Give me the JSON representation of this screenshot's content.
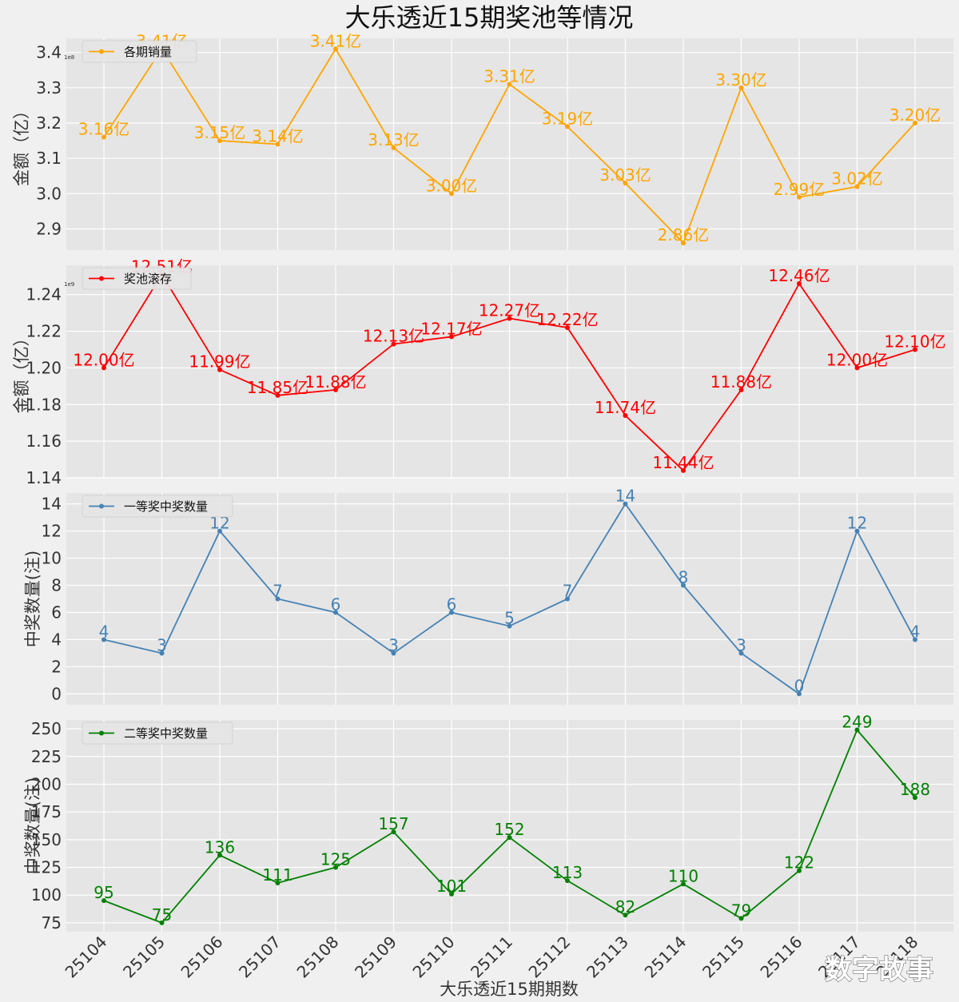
{
  "title": "大乐透近15期奖池等情况",
  "xlabel": "大乐透近15期期数",
  "watermark": "数字故事",
  "chart_data": [
    {
      "type": "line",
      "name": "sales",
      "legend": "各期销量",
      "color": "#FFA500",
      "ylabel": "金额（亿）",
      "exponent": "1e8",
      "categories": [
        "25104",
        "25105",
        "25106",
        "25107",
        "25108",
        "25109",
        "25110",
        "25111",
        "25112",
        "25113",
        "25114",
        "25115",
        "25116",
        "25117",
        "25118"
      ],
      "values": [
        3.16,
        3.41,
        3.15,
        3.14,
        3.41,
        3.13,
        3.0,
        3.31,
        3.19,
        3.03,
        2.86,
        3.3,
        2.99,
        3.02,
        3.2
      ],
      "labels": [
        "3.16亿",
        "3.41亿",
        "3.15亿",
        "3.14亿",
        "3.41亿",
        "3.13亿",
        "3.00亿",
        "3.31亿",
        "3.19亿",
        "3.03亿",
        "2.86亿",
        "3.30亿",
        "2.99亿",
        "3.02亿",
        "3.20亿"
      ],
      "ylim": [
        2.84,
        3.44
      ],
      "yticks": [
        2.9,
        3.0,
        3.1,
        3.2,
        3.3,
        3.4
      ],
      "yticklabels": [
        "2.9",
        "3.0",
        "3.1",
        "3.2",
        "3.3",
        "3.4"
      ]
    },
    {
      "type": "line",
      "name": "pool",
      "legend": "奖池滚存",
      "color": "#FF0000",
      "ylabel": "金额（亿）",
      "exponent": "1e9",
      "categories": [
        "25104",
        "25105",
        "25106",
        "25107",
        "25108",
        "25109",
        "25110",
        "25111",
        "25112",
        "25113",
        "25114",
        "25115",
        "25116",
        "25117",
        "25118"
      ],
      "values": [
        12.0,
        12.51,
        11.99,
        11.85,
        11.88,
        12.13,
        12.17,
        12.27,
        12.22,
        11.74,
        11.44,
        11.88,
        12.46,
        12.0,
        12.1
      ],
      "labels": [
        "12.00亿",
        "12.51亿",
        "11.99亿",
        "11.85亿",
        "11.88亿",
        "12.13亿",
        "12.17亿",
        "12.27亿",
        "12.22亿",
        "11.74亿",
        "11.44亿",
        "11.88亿",
        "12.46亿",
        "12.00亿",
        "12.10亿"
      ],
      "ylim": [
        11.4,
        12.56
      ],
      "yticks": [
        11.4,
        11.6,
        11.8,
        12.0,
        12.2,
        12.4
      ],
      "yticklabels": [
        "1.14",
        "1.16",
        "1.18",
        "1.20",
        "1.22",
        "1.24"
      ]
    },
    {
      "type": "line",
      "name": "first",
      "legend": "一等奖中奖数量",
      "color": "#4682B4",
      "ylabel": "中奖数量(注)",
      "categories": [
        "25104",
        "25105",
        "25106",
        "25107",
        "25108",
        "25109",
        "25110",
        "25111",
        "25112",
        "25113",
        "25114",
        "25115",
        "25116",
        "25117",
        "25118"
      ],
      "values": [
        4,
        3,
        12,
        7,
        6,
        3,
        6,
        5,
        7,
        14,
        8,
        3,
        0,
        12,
        4
      ],
      "labels": [
        "4",
        "3",
        "12",
        "7",
        "6",
        "3",
        "6",
        "5",
        "7",
        "14",
        "8",
        "3",
        "0",
        "12",
        "4"
      ],
      "ylim": [
        -0.8,
        14.8
      ],
      "yticks": [
        0,
        2,
        4,
        6,
        8,
        10,
        12,
        14
      ],
      "yticklabels": [
        "0",
        "2",
        "4",
        "6",
        "8",
        "10",
        "12",
        "14"
      ]
    },
    {
      "type": "line",
      "name": "second",
      "legend": "二等奖中奖数量",
      "color": "#008000",
      "ylabel": "中奖数量(注)",
      "categories": [
        "25104",
        "25105",
        "25106",
        "25107",
        "25108",
        "25109",
        "25110",
        "25111",
        "25112",
        "25113",
        "25114",
        "25115",
        "25116",
        "25117",
        "25118"
      ],
      "values": [
        95,
        75,
        136,
        111,
        125,
        157,
        101,
        152,
        113,
        82,
        110,
        79,
        122,
        249,
        188
      ],
      "labels": [
        "95",
        "75",
        "136",
        "111",
        "125",
        "157",
        "101",
        "152",
        "113",
        "82",
        "110",
        "79",
        "122",
        "249",
        "188"
      ],
      "ylim": [
        67,
        258
      ],
      "yticks": [
        75,
        100,
        125,
        150,
        175,
        200,
        225,
        250
      ],
      "yticklabels": [
        "75",
        "100",
        "125",
        "150",
        "175",
        "200",
        "225",
        "250"
      ]
    }
  ]
}
